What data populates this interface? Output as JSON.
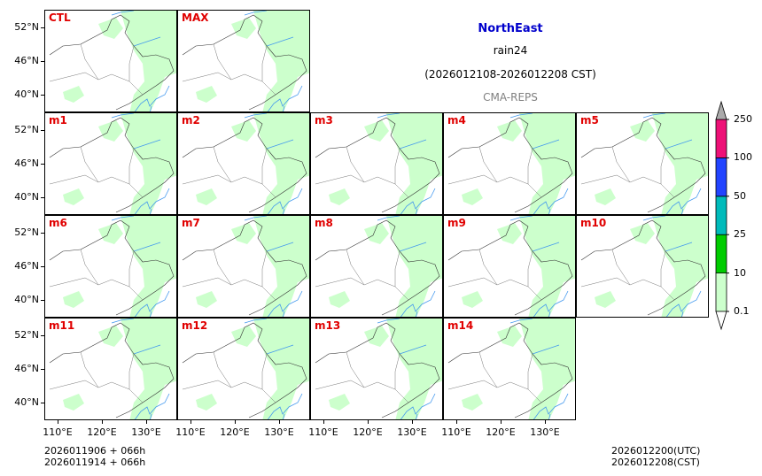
{
  "title": {
    "region": "NorthEast",
    "variable": "rain24",
    "period": "(2026012108-2026012208 CST)",
    "source": "CMA-REPS"
  },
  "panels": [
    "CTL",
    "MAX",
    "m1",
    "m2",
    "m3",
    "m4",
    "m5",
    "m6",
    "m7",
    "m8",
    "m9",
    "m10",
    "m11",
    "m12",
    "m13",
    "m14"
  ],
  "y_tick_labels": [
    "52°N",
    "46°N",
    "40°N"
  ],
  "x_tick_labels": [
    "110°E",
    "120°E",
    "130°E"
  ],
  "colorbar": {
    "levels": [
      "0.1",
      "10",
      "25",
      "50",
      "100",
      "250"
    ],
    "colors": [
      "#ccffcc",
      "#00cc00",
      "#00bbbb",
      "#2244ff",
      "#ee1177",
      "#aaaaaa"
    ]
  },
  "footer": {
    "left_line1": "2026011906  +  066h",
    "left_line2": "2026011914  +  066h",
    "right_line1": "2026012200(UTC)",
    "right_line2": "2026012208(CST)"
  },
  "colors": {
    "region_title": "#0000cc",
    "panel_label": "#e00000",
    "source_text": "#808080",
    "rain_light": "#ccffcc",
    "river": "#4499ee"
  }
}
